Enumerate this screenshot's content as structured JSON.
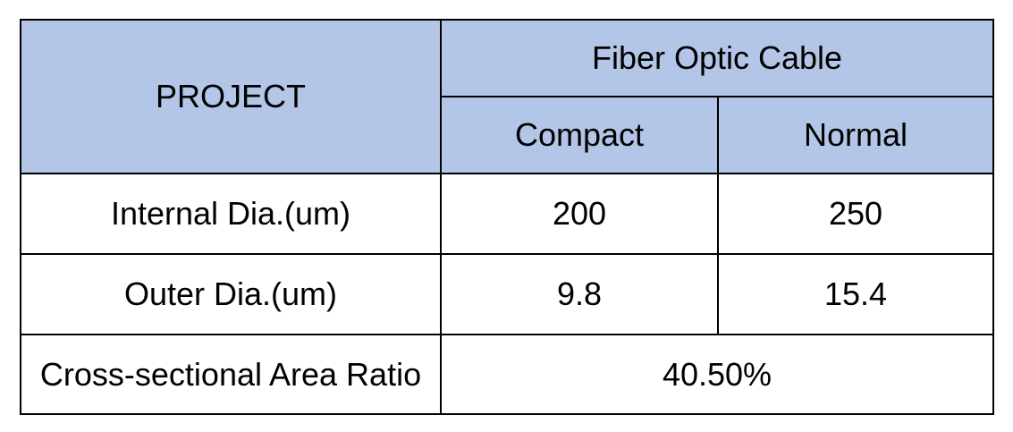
{
  "chart_data": {
    "type": "table",
    "title": "",
    "column_group_header": "Fiber Optic Cable",
    "columns": [
      "PROJECT",
      "Compact",
      "Normal"
    ],
    "rows": [
      [
        "Internal Dia.(um)",
        "200",
        "250"
      ],
      [
        "Outer Dia.(um)",
        "9.8",
        "15.4"
      ],
      [
        "Cross-sectional Area Ratio",
        "40.50%",
        "40.50%"
      ]
    ],
    "notes": "Last row value 40.50% is a single merged cell spanning the Compact and Normal columns"
  },
  "table": {
    "header": {
      "project_label": "PROJECT",
      "group_label": "Fiber Optic Cable",
      "sub_columns": [
        "Compact",
        "Normal"
      ]
    },
    "rows": [
      {
        "label": "Internal Dia.(um)",
        "values": [
          "200",
          "250"
        ]
      },
      {
        "label": "Outer Dia.(um)",
        "values": [
          "9.8",
          "15.4"
        ]
      },
      {
        "label": "Cross-sectional Area Ratio",
        "merged_value": "40.50%"
      }
    ],
    "colors": {
      "header_bg": "#b4c6e7",
      "border": "#000000",
      "text": "#000000",
      "page_bg": "#ffffff"
    }
  }
}
